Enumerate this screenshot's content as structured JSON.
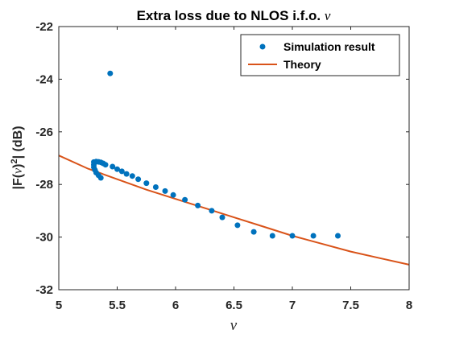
{
  "chart_data": {
    "type": "scatter",
    "title_text": "Extra loss due to NLOS i.f.o. ",
    "title_symbol": "ν",
    "xlabel": "ν",
    "ylabel_prefix": "|F(",
    "ylabel_symbol": "ν",
    "ylabel_suffix": ")",
    "ylabel_sup": "2",
    "ylabel_tail": "| (dB)",
    "xlim": [
      5,
      8
    ],
    "ylim": [
      -32,
      -22
    ],
    "xticks": [
      "5",
      "5.5",
      "6",
      "6.5",
      "7",
      "7.5",
      "8"
    ],
    "yticks": [
      "-22",
      "-24",
      "-26",
      "-28",
      "-30",
      "-32"
    ],
    "grid": false,
    "legend_position": "top-right",
    "series": [
      {
        "name": "Simulation result",
        "kind": "scatter",
        "color": "#0072BD",
        "points": [
          [
            5.44,
            -23.78
          ],
          [
            5.3,
            -27.15
          ],
          [
            5.32,
            -27.13
          ],
          [
            5.34,
            -27.14
          ],
          [
            5.36,
            -27.16
          ],
          [
            5.38,
            -27.2
          ],
          [
            5.4,
            -27.25
          ],
          [
            5.3,
            -27.25
          ],
          [
            5.3,
            -27.35
          ],
          [
            5.31,
            -27.45
          ],
          [
            5.32,
            -27.55
          ],
          [
            5.34,
            -27.65
          ],
          [
            5.36,
            -27.75
          ],
          [
            5.46,
            -27.32
          ],
          [
            5.5,
            -27.42
          ],
          [
            5.54,
            -27.5
          ],
          [
            5.58,
            -27.6
          ],
          [
            5.63,
            -27.68
          ],
          [
            5.68,
            -27.8
          ],
          [
            5.75,
            -27.95
          ],
          [
            5.83,
            -28.1
          ],
          [
            5.91,
            -28.25
          ],
          [
            5.98,
            -28.4
          ],
          [
            6.08,
            -28.58
          ],
          [
            6.19,
            -28.8
          ],
          [
            6.31,
            -29.0
          ],
          [
            6.4,
            -29.25
          ],
          [
            6.53,
            -29.55
          ],
          [
            6.67,
            -29.8
          ],
          [
            6.83,
            -29.95
          ],
          [
            7.0,
            -29.95
          ],
          [
            7.18,
            -29.95
          ],
          [
            7.39,
            -29.95
          ]
        ]
      },
      {
        "name": "Theory",
        "kind": "line",
        "color": "#D95319",
        "x": [
          5.0,
          5.25,
          5.5,
          5.75,
          6.0,
          6.25,
          6.5,
          6.75,
          7.0,
          7.25,
          7.5,
          7.75,
          8.0
        ],
        "y": [
          -26.9,
          -27.4,
          -27.8,
          -28.2,
          -28.55,
          -28.9,
          -29.25,
          -29.6,
          -29.95,
          -30.25,
          -30.55,
          -30.8,
          -31.05
        ]
      }
    ]
  }
}
